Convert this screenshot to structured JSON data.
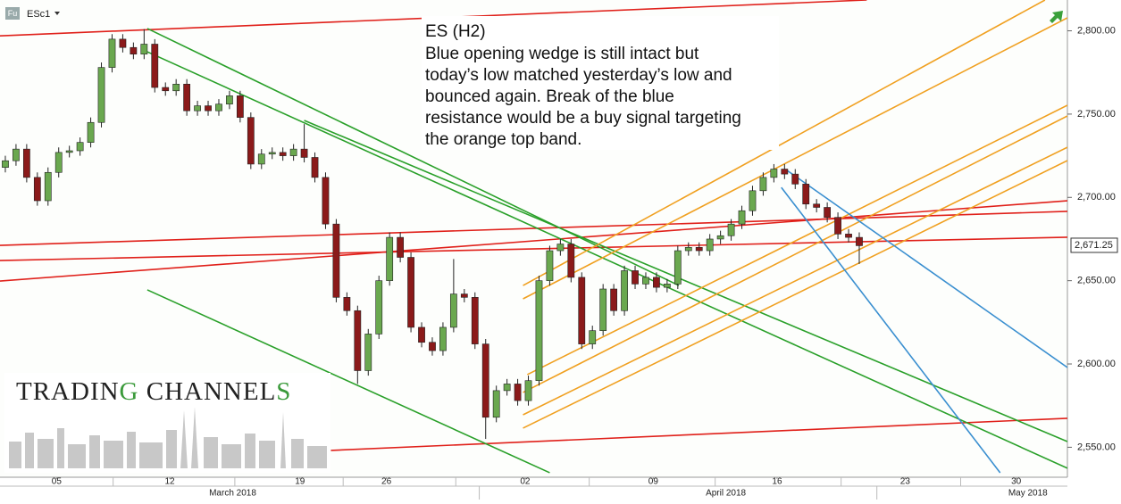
{
  "chart_data": {
    "type": "candlestick",
    "symbol_badge": "Fu",
    "symbol": "ESc1",
    "annotation": [
      "ES (H2)",
      "Blue opening wedge is still intact but",
      "today’s low matched yesterday’s low and",
      "bounced again. Break of the blue",
      "resistance would be a buy signal targeting",
      "the orange top band."
    ],
    "logo": [
      "TRADIN",
      "G",
      " CHANNEL",
      "S"
    ],
    "up_color": "#6aa84f",
    "down_color": "#8b1a1a",
    "xlim": [
      0,
      100
    ],
    "ylim": [
      2532,
      2818.5
    ],
    "yticks": [
      {
        "value": 2550,
        "label": "2,550.00"
      },
      {
        "value": 2600,
        "label": "2,600.00"
      },
      {
        "value": 2650,
        "label": "2,650.00"
      },
      {
        "value": 2700,
        "label": "2,700.00"
      },
      {
        "value": 2750,
        "label": "2,750.00"
      },
      {
        "value": 2800,
        "label": "2,800.00"
      }
    ],
    "xticks": [
      {
        "value": 5.3,
        "label": "05"
      },
      {
        "value": 15.9,
        "label": "12"
      },
      {
        "value": 28.1,
        "label": "19"
      },
      {
        "value": 36.2,
        "label": "26"
      },
      {
        "value": 49.2,
        "label": "02"
      },
      {
        "value": 61.2,
        "label": "09"
      },
      {
        "value": 72.8,
        "label": "16"
      },
      {
        "value": 84.8,
        "label": "23"
      },
      {
        "value": 95.2,
        "label": "30"
      }
    ],
    "month_ticks": [
      {
        "value": 21.8,
        "label": "March 2018"
      },
      {
        "value": 68.0,
        "label": "April 2018"
      },
      {
        "value": 96.3,
        "label": "May 2018"
      }
    ],
    "last_price": {
      "value": 2671.25,
      "label": "2,671.25"
    },
    "x": [
      0.5,
      1.5,
      2.5,
      3.5,
      4.5,
      5.5,
      6.5,
      7.5,
      8.5,
      9.5,
      10.5,
      11.5,
      12.5,
      13.5,
      14.5,
      15.5,
      16.5,
      17.5,
      18.5,
      19.5,
      20.5,
      21.5,
      22.5,
      23.5,
      24.5,
      25.5,
      26.5,
      27.5,
      28.5,
      29.5,
      30.5,
      31.5,
      32.5,
      33.5,
      34.5,
      35.5,
      36.5,
      37.5,
      38.5,
      39.5,
      40.5,
      41.5,
      42.5,
      43.5,
      44.5,
      45.5,
      46.5,
      47.5,
      48.5,
      49.5,
      50.5,
      51.5,
      52.5,
      53.5,
      54.5,
      55.5,
      56.5,
      57.5,
      58.5,
      59.5,
      60.5,
      61.5,
      62.5,
      63.5,
      64.5,
      65.5,
      66.5,
      67.5,
      68.5,
      69.5,
      70.5,
      71.5,
      72.5,
      73.5,
      74.5,
      75.5,
      76.5,
      77.5,
      78.5,
      79.5,
      80.5
    ],
    "open": [
      2718,
      2722,
      2729,
      2712,
      2698,
      2715,
      2727,
      2728,
      2733,
      2745,
      2778,
      2795,
      2790,
      2786,
      2792,
      2766,
      2764,
      2768,
      2752,
      2755,
      2752,
      2756,
      2761,
      2748,
      2720,
      2726,
      2727,
      2725,
      2729,
      2724,
      2712,
      2684,
      2640,
      2632,
      2596,
      2618,
      2650,
      2676,
      2664,
      2622,
      2613,
      2608,
      2622,
      2642,
      2640,
      2612,
      2568,
      2584,
      2588,
      2578,
      2590,
      2650,
      2668,
      2672,
      2652,
      2612,
      2620,
      2645,
      2632,
      2656,
      2648,
      2652,
      2646,
      2648,
      2668,
      2670,
      2668,
      2675,
      2677,
      2684,
      2692,
      2704,
      2712,
      2717,
      2714,
      2708,
      2696,
      2694,
      2688,
      2678,
      2676
    ],
    "high": [
      2725,
      2732,
      2732,
      2715,
      2718,
      2730,
      2731,
      2736,
      2748,
      2781,
      2798,
      2798,
      2793,
      2801,
      2795,
      2769,
      2771,
      2771,
      2758,
      2758,
      2759,
      2764,
      2764,
      2751,
      2729,
      2730,
      2730,
      2732,
      2744,
      2727,
      2715,
      2687,
      2643,
      2635,
      2621,
      2653,
      2679,
      2679,
      2667,
      2625,
      2616,
      2625,
      2663,
      2645,
      2643,
      2615,
      2587,
      2591,
      2591,
      2593,
      2653,
      2671,
      2675,
      2675,
      2655,
      2623,
      2648,
      2648,
      2659,
      2659,
      2655,
      2655,
      2651,
      2671,
      2673,
      2673,
      2678,
      2680,
      2687,
      2695,
      2707,
      2715,
      2720,
      2720,
      2717,
      2711,
      2699,
      2697,
      2691,
      2681,
      2679
    ],
    "low": [
      2715,
      2719,
      2709,
      2695,
      2695,
      2712,
      2724,
      2725,
      2730,
      2742,
      2775,
      2787,
      2783,
      2783,
      2763,
      2761,
      2761,
      2749,
      2749,
      2749,
      2749,
      2753,
      2745,
      2717,
      2717,
      2723,
      2722,
      2722,
      2721,
      2709,
      2681,
      2637,
      2629,
      2588,
      2593,
      2615,
      2647,
      2661,
      2619,
      2610,
      2605,
      2605,
      2619,
      2637,
      2609,
      2555,
      2565,
      2581,
      2575,
      2575,
      2587,
      2647,
      2665,
      2649,
      2609,
      2609,
      2617,
      2629,
      2629,
      2645,
      2645,
      2643,
      2643,
      2645,
      2665,
      2665,
      2665,
      2672,
      2674,
      2681,
      2689,
      2701,
      2709,
      2711,
      2705,
      2693,
      2691,
      2685,
      2675,
      2673,
      2660
    ],
    "close": [
      2722,
      2729,
      2712,
      2698,
      2715,
      2727,
      2728,
      2733,
      2745,
      2778,
      2795,
      2790,
      2786,
      2792,
      2766,
      2764,
      2768,
      2752,
      2755,
      2752,
      2756,
      2761,
      2748,
      2720,
      2726,
      2727,
      2725,
      2729,
      2724,
      2712,
      2684,
      2640,
      2632,
      2596,
      2618,
      2650,
      2676,
      2664,
      2622,
      2613,
      2608,
      2622,
      2642,
      2640,
      2612,
      2568,
      2584,
      2588,
      2578,
      2590,
      2650,
      2668,
      2672,
      2652,
      2612,
      2620,
      2645,
      2632,
      2656,
      2648,
      2652,
      2646,
      2648,
      2668,
      2670,
      2668,
      2675,
      2677,
      2684,
      2692,
      2704,
      2712,
      2717,
      2714,
      2708,
      2696,
      2694,
      2688,
      2678,
      2676,
      2671
    ],
    "lines": [
      {
        "color": "#e0201a",
        "x": [
          0,
          81.2
        ],
        "y": [
          2797,
          2818.5
        ]
      },
      {
        "color": "#e0201a",
        "x": [
          0,
          100
        ],
        "y": [
          2671.2,
          2691.6
        ]
      },
      {
        "color": "#e0201a",
        "x": [
          0,
          100
        ],
        "y": [
          2662.1,
          2676.1
        ]
      },
      {
        "color": "#e0201a",
        "x": [
          0,
          100
        ],
        "y": [
          2649.8,
          2698.0
        ]
      },
      {
        "color": "#e0201a",
        "x": [
          31,
          100
        ],
        "y": [
          2548.1,
          2567.4
        ]
      },
      {
        "color": "#2aa02a",
        "x": [
          13.8,
          63.6
        ],
        "y": [
          2801.4,
          2647.1
        ]
      },
      {
        "color": "#2aa02a",
        "x": [
          13.8,
          100
        ],
        "y": [
          2787.4,
          2537.4
        ]
      },
      {
        "color": "#2aa02a",
        "x": [
          28.5,
          100
        ],
        "y": [
          2746.2,
          2553.4
        ]
      },
      {
        "color": "#2aa02a",
        "x": [
          13.8,
          51.5
        ],
        "y": [
          2644.5,
          2534.7
        ]
      },
      {
        "color": "#f0a020",
        "x": [
          49,
          97.9
        ],
        "y": [
          2647.1,
          2818.5
        ]
      },
      {
        "color": "#f0a020",
        "x": [
          49,
          100
        ],
        "y": [
          2639.1,
          2807.8
        ]
      },
      {
        "color": "#f0a020",
        "x": [
          49.4,
          100
        ],
        "y": [
          2593.6,
          2755.3
        ]
      },
      {
        "color": "#f0a020",
        "x": [
          49,
          100
        ],
        "y": [
          2582.9,
          2748.9
        ]
      },
      {
        "color": "#f0a020",
        "x": [
          49,
          100
        ],
        "y": [
          2569.5,
          2730.1
        ]
      },
      {
        "color": "#f0a020",
        "x": [
          49,
          100
        ],
        "y": [
          2561.5,
          2722.1
        ]
      },
      {
        "color": "#3a8fd0",
        "x": [
          73.6,
          100
        ],
        "y": [
          2716.8,
          2597.9
        ]
      },
      {
        "color": "#3a8fd0",
        "x": [
          73.2,
          93.7
        ],
        "y": [
          2706.0,
          2534.7
        ]
      }
    ]
  }
}
